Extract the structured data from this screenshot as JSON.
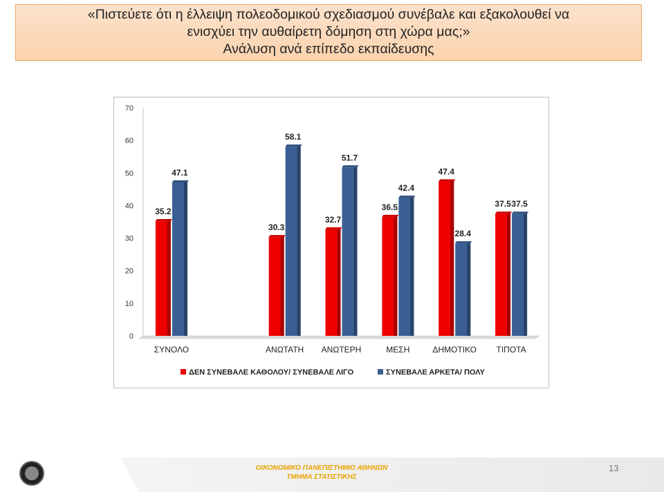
{
  "slide": {
    "title_line1": "«Πιστεύετε ότι η έλλειψη πολεοδομικού σχεδιασμού συνέβαλε και εξακολουθεί να",
    "title_line2": "ενισχύει την αυθαίρετη δόμηση στη χώρα μας;»",
    "subtitle": "Ανάλυση ανά επίπεδο εκπαίδευσης",
    "page_number": "13"
  },
  "footer": {
    "line1": "ΟΙΚΟΝΟΜΙΚΟ ΠΑΝΕΠΙΣΤΗΜΙΟ ΑΘΗΝΩΝ",
    "line2": "ΤΜΗΜΑ ΣΤΑΤΙΣΤΙΚΗΣ"
  },
  "chart_data": {
    "type": "bar",
    "categories": [
      "ΣΥΝΟΛΟ",
      "",
      "ΑΝΩΤΑΤΗ",
      "ΑΝΩΤΕΡΗ",
      "ΜΕΣΗ",
      "ΔΗΜΟΤΙΚΟ",
      "ΤΙΠΟΤΑ"
    ],
    "series": [
      {
        "name": "ΔΕΝ ΣΥΝΕΒΑΛΕ ΚΑΘΟΛΟΥ/ ΣΥΝΕΒΑΛΕ ΛΙΓΟ",
        "color": "#ee0000",
        "values": [
          35.2,
          null,
          30.3,
          32.7,
          36.5,
          47.4,
          37.5
        ]
      },
      {
        "name": "ΣΥΝΕΒΑΛΕ ΑΡΚΕΤΑ/ ΠΟΛΥ",
        "color": "#3a5f94",
        "values": [
          47.1,
          null,
          58.1,
          51.7,
          42.4,
          28.4,
          37.5
        ]
      }
    ],
    "ylim": [
      0,
      70
    ],
    "yticks": [
      "0",
      "10",
      "20",
      "30",
      "40",
      "50",
      "60",
      "70"
    ],
    "legend_position": "bottom",
    "grid": false
  }
}
